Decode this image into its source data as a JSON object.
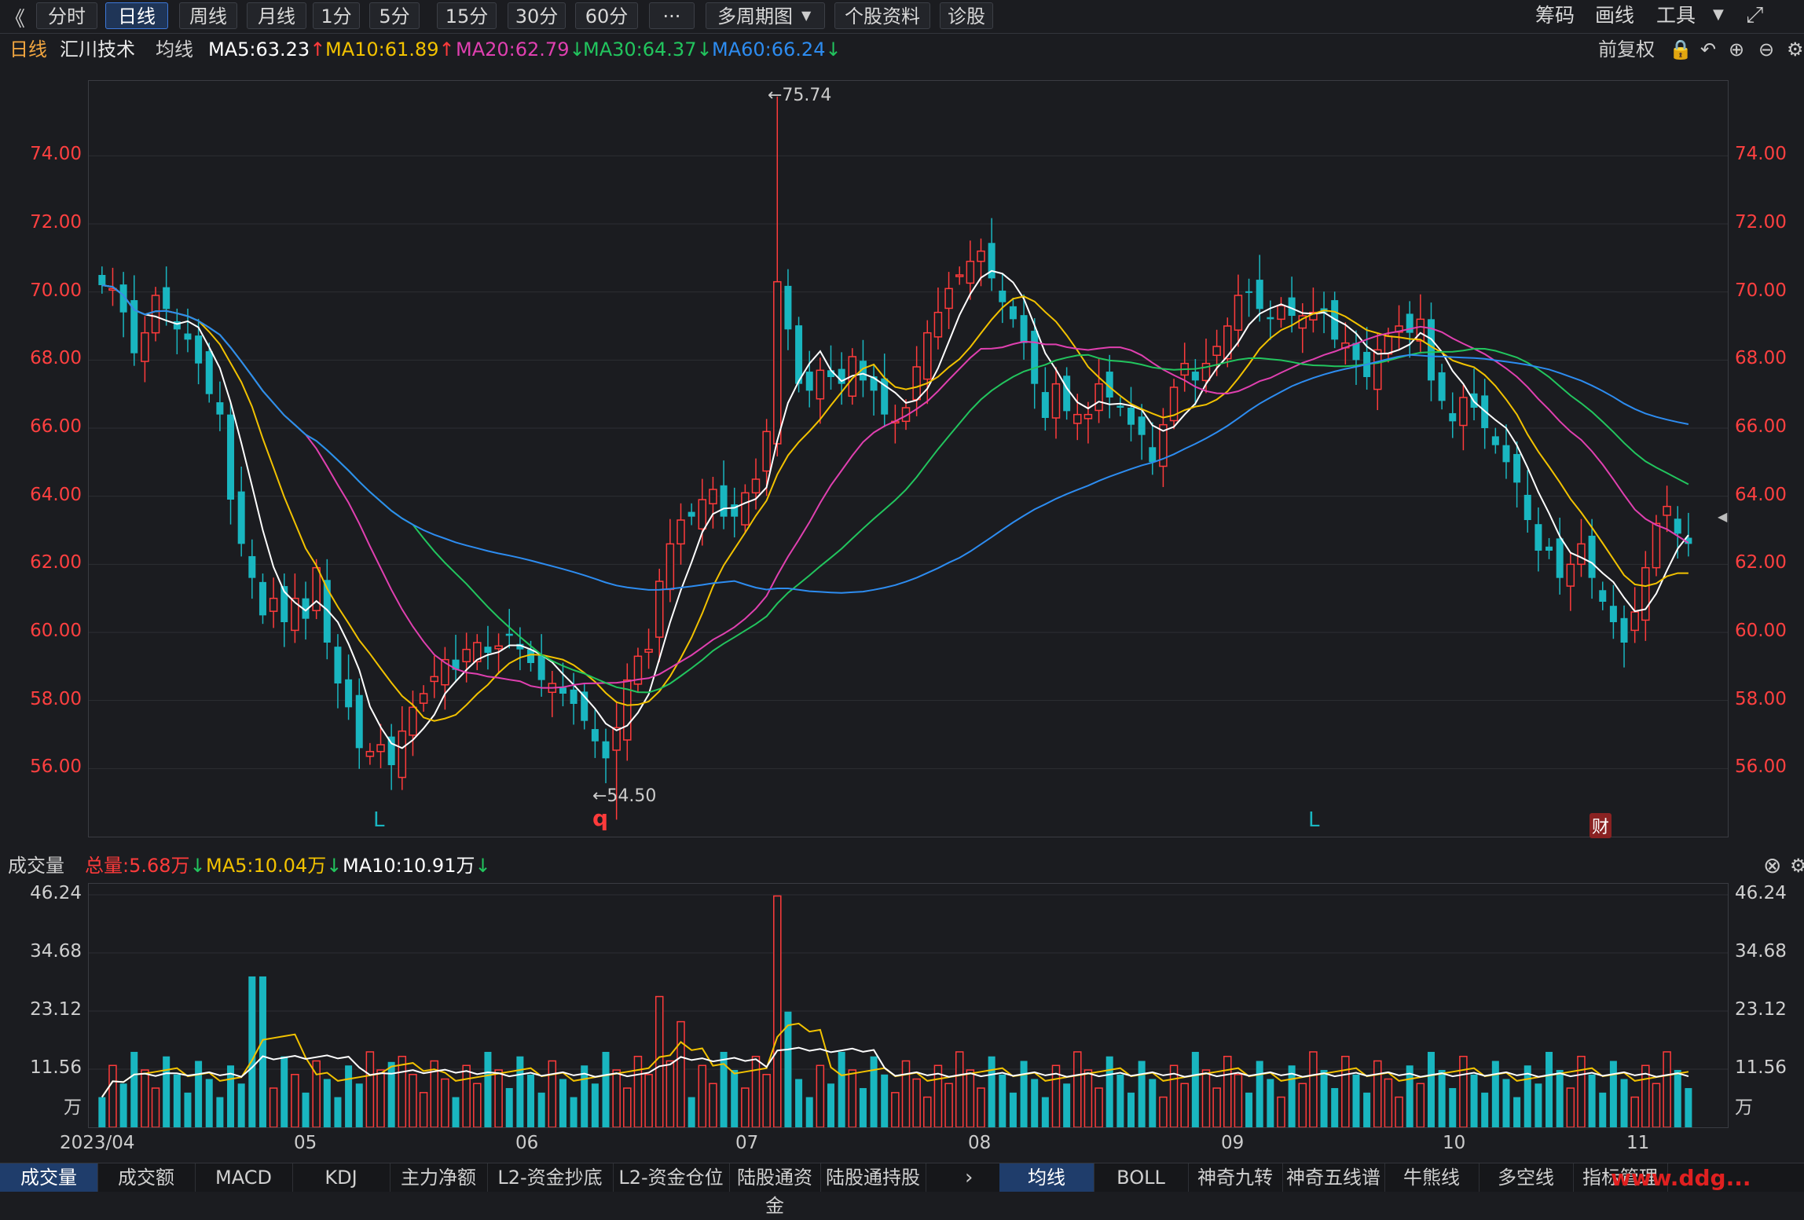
{
  "toolbar": {
    "back": "《",
    "buttons": [
      "分时",
      "日线",
      "周线",
      "月线",
      "1分",
      "5分",
      "15分",
      "30分",
      "60分",
      "···",
      "多周期图",
      "个股资料",
      "诊股"
    ],
    "active_index": 1,
    "right": [
      "筹码",
      "画线",
      "工具"
    ]
  },
  "info": {
    "period": "日线",
    "stock_name": "汇川技术",
    "ma_label": "均线",
    "ma5": "MA5:63.23",
    "ma10": "MA10:61.89",
    "ma20": "MA20:62.79",
    "ma30": "MA30:64.37",
    "ma60": "MA60:66.24",
    "adjust": "前复权"
  },
  "colors": {
    "up": "#ff3b3b",
    "down": "#19b6c0",
    "ma5": "#ffffff",
    "ma10": "#f2c200",
    "ma20": "#e040b0",
    "ma30": "#22c55e",
    "ma60": "#2d8cf0"
  },
  "price_axis": [
    "74.00",
    "72.00",
    "70.00",
    "68.00",
    "66.00",
    "64.00",
    "62.00",
    "60.00",
    "58.00",
    "56.00"
  ],
  "annotations": {
    "high": "←75.74",
    "low": "←54.50",
    "marker_l1": "L",
    "marker_q": "q",
    "marker_l2": "L",
    "marker_cai": "财"
  },
  "volume": {
    "label": "成交量",
    "total": "总量:5.68万",
    "ma5": "MA5:10.04万",
    "ma10": "MA10:10.91万",
    "axis": [
      "46.24",
      "34.68",
      "23.12",
      "11.56",
      "万"
    ]
  },
  "dates": [
    "2023/04",
    "05",
    "06",
    "07",
    "08",
    "09",
    "10",
    "11"
  ],
  "bottom_tabs_left": [
    "成交量",
    "成交额",
    "MACD",
    "KDJ",
    "主力净额",
    "L2-资金抄底",
    "L2-资金仓位",
    "陆股通资金",
    "陆股通持股"
  ],
  "bottom_tabs_right": [
    "均线",
    "BOLL",
    "神奇九转",
    "神奇五线谱",
    "牛熊线",
    "多空线",
    "指标管理"
  ],
  "watermark": "www.ddg...",
  "chart_data": {
    "type": "candlestick",
    "ylim": [
      54.0,
      76.2
    ],
    "volume_ylim": [
      0,
      46.24
    ],
    "closes": [
      70.2,
      70.1,
      69.4,
      68.2,
      68.8,
      69.9,
      69.5,
      68.9,
      68.6,
      67.9,
      67.0,
      66.4,
      63.9,
      62.6,
      61.6,
      60.5,
      61.0,
      60.3,
      61.0,
      60.4,
      61.9,
      59.7,
      58.5,
      57.8,
      56.6,
      56.5,
      56.7,
      56.1,
      57.1,
      57.8,
      58.2,
      58.7,
      59.2,
      58.9,
      59.5,
      59.7,
      59.4,
      59.6,
      59.9,
      59.5,
      59.1,
      58.6,
      58.5,
      58.2,
      57.9,
      57.4,
      56.8,
      56.3,
      57.2,
      58.6,
      59.3,
      59.5,
      61.5,
      62.6,
      63.3,
      63.4,
      63.9,
      64.2,
      63.4,
      63.4,
      64.1,
      64.5,
      65.9,
      70.3,
      68.9,
      67.3,
      67.1,
      67.7,
      67.5,
      67.3,
      68.1,
      67.4,
      67.1,
      66.4,
      66.2,
      66.6,
      67.8,
      68.8,
      69.4,
      70.1,
      70.5,
      70.9,
      71.2,
      70.4,
      69.7,
      69.2,
      68.5,
      67.3,
      66.3,
      67.3,
      66.5,
      66.4,
      66.4,
      67.3,
      66.9,
      66.6,
      66.1,
      65.8,
      65.0,
      66.1,
      67.2,
      67.9,
      67.4,
      67.9,
      68.4,
      69.0,
      69.9,
      70.0,
      69.5,
      69.2,
      69.6,
      69.3,
      69.3,
      69.4,
      69.4,
      68.6,
      68.5,
      68.0,
      67.5,
      68.3,
      68.7,
      69.0,
      68.8,
      69.2,
      67.4,
      66.8,
      66.2,
      66.9,
      66.6,
      66.0,
      65.5,
      65.0,
      64.4,
      63.3,
      62.4,
      62.4,
      61.6,
      62.0,
      62.6,
      61.6,
      60.9,
      60.3,
      59.7,
      60.6,
      61.9,
      63.2,
      63.7,
      62.9,
      62.6
    ]
  }
}
